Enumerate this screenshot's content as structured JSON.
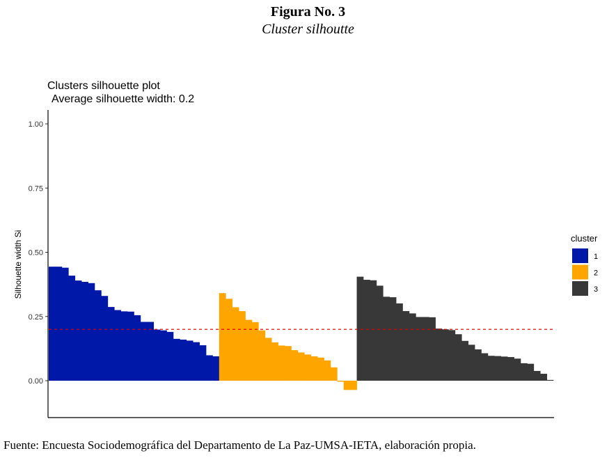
{
  "figure": {
    "number": "Figura No. 3",
    "caption": "Cluster silhoutte",
    "source": "Fuente: Encuesta Sociodemográfica del Departamento de La Paz-UMSA-IETA, elaboración propia."
  },
  "chart_data": {
    "type": "bar",
    "title": "Clusters silhouette plot",
    "subtitle": "Average silhouette width: 0.2",
    "xlabel": "",
    "ylabel": "Silhouette width Si",
    "ylim": [
      -0.12,
      1.05
    ],
    "yticks": [
      0.0,
      0.25,
      0.5,
      0.75,
      1.0
    ],
    "ytick_labels": [
      "0.00",
      "0.25",
      "0.50",
      "0.75",
      "1.00"
    ],
    "average_line": 0.2,
    "legend": {
      "title": "cluster",
      "placement": "right",
      "entries": [
        "1",
        "2",
        "3"
      ]
    },
    "colors": {
      "1": "#0018a8",
      "2": "#ffa500",
      "3": "#383838",
      "average_line": "#e00000"
    },
    "series": [
      {
        "name": "1",
        "values": [
          0.444,
          0.444,
          0.44,
          0.409,
          0.39,
          0.385,
          0.38,
          0.352,
          0.33,
          0.287,
          0.275,
          0.27,
          0.269,
          0.255,
          0.229,
          0.229,
          0.199,
          0.196,
          0.19,
          0.163,
          0.16,
          0.156,
          0.15,
          0.138,
          0.099,
          0.095
        ]
      },
      {
        "name": "2",
        "values": [
          0.341,
          0.319,
          0.286,
          0.271,
          0.237,
          0.228,
          0.196,
          0.167,
          0.149,
          0.137,
          0.135,
          0.119,
          0.11,
          0.102,
          0.095,
          0.09,
          0.079,
          0.052,
          -0.004,
          -0.036,
          -0.036
        ]
      },
      {
        "name": "3",
        "values": [
          0.405,
          0.393,
          0.391,
          0.37,
          0.327,
          0.325,
          0.301,
          0.271,
          0.262,
          0.248,
          0.248,
          0.247,
          0.203,
          0.2,
          0.197,
          0.181,
          0.155,
          0.14,
          0.122,
          0.107,
          0.097,
          0.096,
          0.094,
          0.092,
          0.086,
          0.068,
          0.066,
          0.038,
          0.027,
          0.003
        ]
      }
    ]
  }
}
